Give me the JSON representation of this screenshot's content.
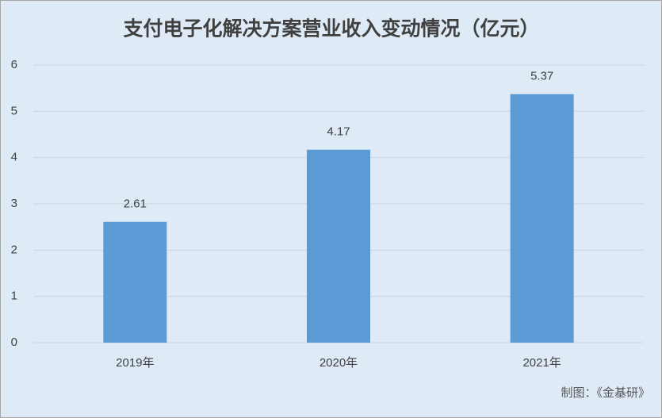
{
  "chart_data": {
    "type": "bar",
    "title": "支付电子化解决方案营业收入变动情况（亿元）",
    "categories": [
      "2019年",
      "2020年",
      "2021年"
    ],
    "values": [
      2.61,
      4.17,
      5.37
    ],
    "color": "#5b9bd5",
    "ylim": [
      0,
      6
    ],
    "yticks": [
      0,
      1,
      2,
      3,
      4,
      5,
      6
    ],
    "grid": true,
    "source": "制图：《金基研》"
  }
}
